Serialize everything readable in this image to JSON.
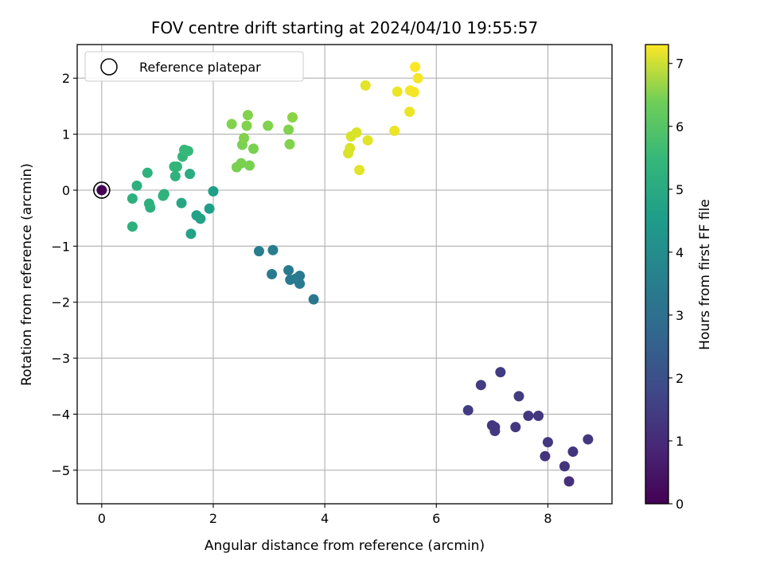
{
  "chart_data": {
    "type": "scatter",
    "title": "FOV centre drift starting at 2024/04/10 19:55:57",
    "xlabel": "Angular distance from reference (arcmin)",
    "ylabel": "Rotation from reference (arcmin)",
    "xlim": [
      -0.44,
      9.15
    ],
    "ylim": [
      -5.6,
      2.6
    ],
    "xticks": [
      0,
      2,
      4,
      6,
      8
    ],
    "yticks": [
      -5,
      -4,
      -3,
      -2,
      -1,
      0,
      1,
      2
    ],
    "grid": true,
    "legend": {
      "placement": "top-left",
      "entries": [
        "Reference platepar"
      ]
    },
    "reference_point": {
      "x": 0,
      "y": 0,
      "label": "Reference platepar",
      "marker": "open-circle",
      "color": "#000000"
    },
    "colorbar": {
      "label": "Hours from first FF file",
      "colormap": "viridis",
      "range": [
        0,
        7.3
      ],
      "ticks": [
        0,
        1,
        2,
        3,
        4,
        5,
        6,
        7
      ]
    },
    "points": [
      {
        "x": 0.0,
        "y": 0.0,
        "c": 0.0
      },
      {
        "x": 6.57,
        "y": -3.93,
        "c": 1.3
      },
      {
        "x": 6.8,
        "y": -3.48,
        "c": 1.3
      },
      {
        "x": 7.15,
        "y": -3.25,
        "c": 1.3
      },
      {
        "x": 7.0,
        "y": -4.2,
        "c": 1.2
      },
      {
        "x": 7.05,
        "y": -4.3,
        "c": 1.2
      },
      {
        "x": 7.05,
        "y": -4.23,
        "c": 1.2
      },
      {
        "x": 7.42,
        "y": -4.23,
        "c": 1.2
      },
      {
        "x": 7.48,
        "y": -3.68,
        "c": 1.3
      },
      {
        "x": 7.65,
        "y": -4.03,
        "c": 1.2
      },
      {
        "x": 7.83,
        "y": -4.03,
        "c": 1.2
      },
      {
        "x": 7.95,
        "y": -4.75,
        "c": 1.1
      },
      {
        "x": 8.0,
        "y": -4.5,
        "c": 1.2
      },
      {
        "x": 8.3,
        "y": -4.93,
        "c": 1.1
      },
      {
        "x": 8.38,
        "y": -5.2,
        "c": 1.0
      },
      {
        "x": 8.45,
        "y": -4.67,
        "c": 1.1
      },
      {
        "x": 8.72,
        "y": -4.45,
        "c": 1.2
      },
      {
        "x": 2.82,
        "y": -1.09,
        "c": 3.1
      },
      {
        "x": 3.07,
        "y": -1.07,
        "c": 3.1
      },
      {
        "x": 3.05,
        "y": -1.5,
        "c": 3.0
      },
      {
        "x": 3.35,
        "y": -1.43,
        "c": 3.0
      },
      {
        "x": 3.38,
        "y": -1.6,
        "c": 3.0
      },
      {
        "x": 3.48,
        "y": -1.58,
        "c": 3.0
      },
      {
        "x": 3.55,
        "y": -1.53,
        "c": 3.0
      },
      {
        "x": 3.55,
        "y": -1.67,
        "c": 3.0
      },
      {
        "x": 3.8,
        "y": -1.95,
        "c": 2.9
      },
      {
        "x": 0.55,
        "y": -0.15,
        "c": 4.6
      },
      {
        "x": 0.55,
        "y": -0.65,
        "c": 4.6
      },
      {
        "x": 0.63,
        "y": 0.08,
        "c": 4.6
      },
      {
        "x": 0.82,
        "y": 0.31,
        "c": 4.7
      },
      {
        "x": 0.85,
        "y": -0.24,
        "c": 4.6
      },
      {
        "x": 0.87,
        "y": -0.31,
        "c": 4.6
      },
      {
        "x": 1.1,
        "y": -0.1,
        "c": 4.7
      },
      {
        "x": 1.12,
        "y": -0.07,
        "c": 4.7
      },
      {
        "x": 1.3,
        "y": 0.42,
        "c": 4.8
      },
      {
        "x": 1.32,
        "y": 0.25,
        "c": 4.7
      },
      {
        "x": 1.35,
        "y": 0.42,
        "c": 4.8
      },
      {
        "x": 1.45,
        "y": 0.6,
        "c": 4.8
      },
      {
        "x": 1.48,
        "y": 0.72,
        "c": 4.9
      },
      {
        "x": 1.55,
        "y": 0.7,
        "c": 4.9
      },
      {
        "x": 1.43,
        "y": -0.23,
        "c": 4.3
      },
      {
        "x": 1.58,
        "y": 0.29,
        "c": 4.5
      },
      {
        "x": 1.6,
        "y": -0.78,
        "c": 4.2
      },
      {
        "x": 1.7,
        "y": -0.45,
        "c": 4.2
      },
      {
        "x": 1.77,
        "y": -0.51,
        "c": 4.2
      },
      {
        "x": 1.93,
        "y": -0.33,
        "c": 4.1
      },
      {
        "x": 2.0,
        "y": -0.02,
        "c": 4.1
      },
      {
        "x": 2.33,
        "y": 1.18,
        "c": 5.9
      },
      {
        "x": 2.42,
        "y": 0.41,
        "c": 5.8
      },
      {
        "x": 2.5,
        "y": 0.48,
        "c": 5.8
      },
      {
        "x": 2.52,
        "y": 0.81,
        "c": 5.8
      },
      {
        "x": 2.55,
        "y": 0.93,
        "c": 5.9
      },
      {
        "x": 2.6,
        "y": 1.15,
        "c": 5.9
      },
      {
        "x": 2.62,
        "y": 1.34,
        "c": 5.9
      },
      {
        "x": 2.65,
        "y": 0.44,
        "c": 5.8
      },
      {
        "x": 2.72,
        "y": 0.74,
        "c": 5.8
      },
      {
        "x": 2.98,
        "y": 1.15,
        "c": 5.9
      },
      {
        "x": 3.35,
        "y": 1.08,
        "c": 5.9
      },
      {
        "x": 3.37,
        "y": 0.82,
        "c": 5.9
      },
      {
        "x": 3.42,
        "y": 1.3,
        "c": 6.0
      },
      {
        "x": 4.42,
        "y": 0.66,
        "c": 6.9
      },
      {
        "x": 4.45,
        "y": 0.75,
        "c": 6.9
      },
      {
        "x": 4.47,
        "y": 0.96,
        "c": 6.9
      },
      {
        "x": 4.57,
        "y": 1.03,
        "c": 6.9
      },
      {
        "x": 4.62,
        "y": 0.36,
        "c": 7.0
      },
      {
        "x": 4.73,
        "y": 1.87,
        "c": 7.0
      },
      {
        "x": 4.77,
        "y": 0.89,
        "c": 7.0
      },
      {
        "x": 5.25,
        "y": 1.06,
        "c": 7.1
      },
      {
        "x": 5.3,
        "y": 1.76,
        "c": 7.1
      },
      {
        "x": 5.52,
        "y": 1.4,
        "c": 7.1
      },
      {
        "x": 5.53,
        "y": 1.78,
        "c": 7.2
      },
      {
        "x": 5.6,
        "y": 1.75,
        "c": 7.2
      },
      {
        "x": 5.62,
        "y": 2.2,
        "c": 7.3
      },
      {
        "x": 5.67,
        "y": 2.0,
        "c": 7.2
      }
    ]
  }
}
